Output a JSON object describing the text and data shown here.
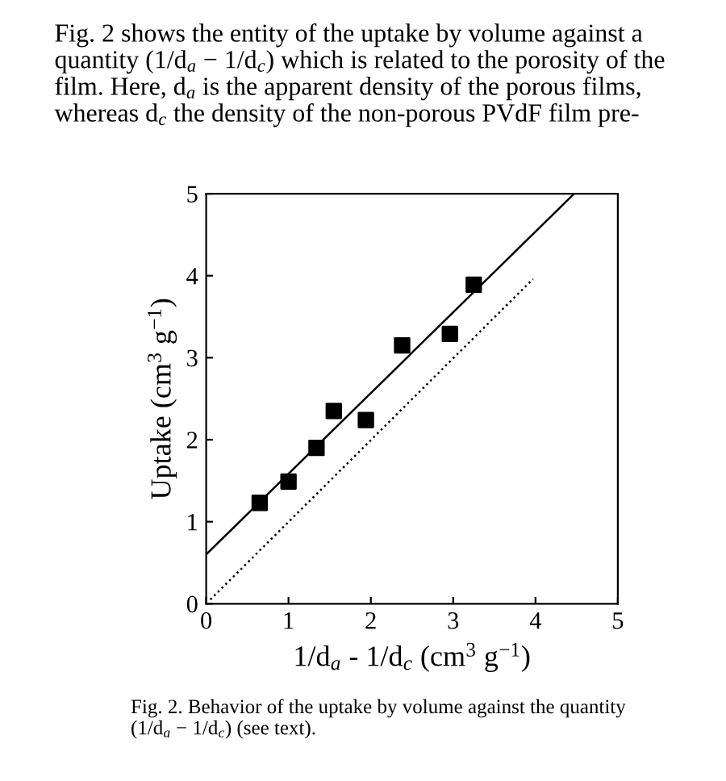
{
  "chart_data": {
    "type": "scatter",
    "subtitle": "Fig. 2 shows the entity of the uptake by volume against a\nquantity (1/d$_{a}$ − 1/d$_{c}$) which is related to the porosity of the\nfilm. Here, d$_{a}$ is the apparent density of the porous films,\nwhereas d$_{c}$ the density of the non-porous PVdF film pre-",
    "title": "Fig. 2. Behavior of the uptake by volume against the quantity\n(1/d$_{a}$ − 1/d$_{c}$) (see text).",
    "xlabel": "1/d$_{a}$ - 1/d$_{c}$ (cm$^{3}$ g$^{−1}$)",
    "ylabel": "Uptake (cm$^{3}$ g$^{−1}$)",
    "series": [
      {
        "color": "#000000",
        "marker": "square",
        "x": [
          0.65,
          1.0,
          1.34,
          1.55,
          1.94,
          2.38,
          2.96,
          3.25
        ],
        "values": [
          1.23,
          1.49,
          1.9,
          2.35,
          2.24,
          3.15,
          3.29,
          3.89
        ]
      },
      {
        "type": "line",
        "color": "#000000",
        "line_style": "solid",
        "x": [
          0,
          4.47
        ],
        "values": [
          0.6,
          5
        ]
      },
      {
        "type": "line",
        "color": "#000000",
        "line_style": "dotted",
        "x": [
          0.05,
          3.97
        ],
        "values": [
          0.05,
          3.96
        ]
      }
    ],
    "xlim": [
      0,
      5
    ],
    "ylim": [
      0,
      5
    ],
    "xticks": [
      0,
      1,
      2,
      3,
      4,
      5
    ],
    "yticks": [
      0,
      1,
      2,
      3,
      4,
      5
    ],
    "grid": false,
    "legend": false
  }
}
